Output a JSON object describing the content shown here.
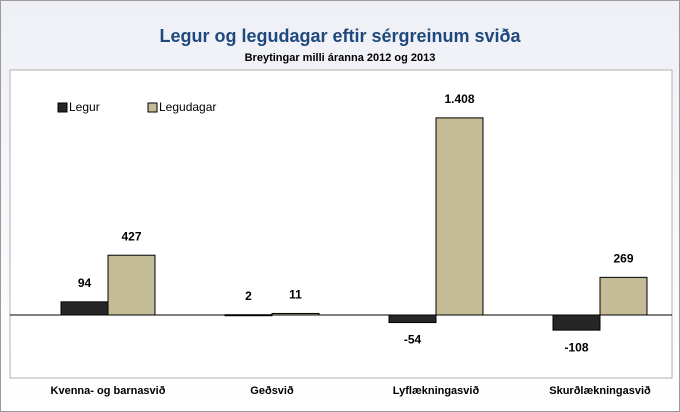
{
  "chart_data": {
    "type": "bar",
    "title": "Legur og legudagar  eftir sérgreinum sviða",
    "subtitle": "Breytingar milli áranna 2012 og 2013",
    "categories": [
      "Kvenna- og barnasvið",
      "Geðsvið",
      "Lyflækningasvið",
      "Skurðlækningasvið"
    ],
    "series": [
      {
        "name": "Legur",
        "color": "#262626",
        "values": [
          94,
          2,
          -54,
          -108
        ]
      },
      {
        "name": "Legudagar",
        "color": "#c4bc96",
        "values": [
          427,
          11,
          1408,
          269
        ],
        "value_labels": [
          "427",
          "11",
          "1.408",
          "269"
        ]
      }
    ],
    "ylim": [
      -400,
      1550
    ],
    "legend": "top-left"
  }
}
